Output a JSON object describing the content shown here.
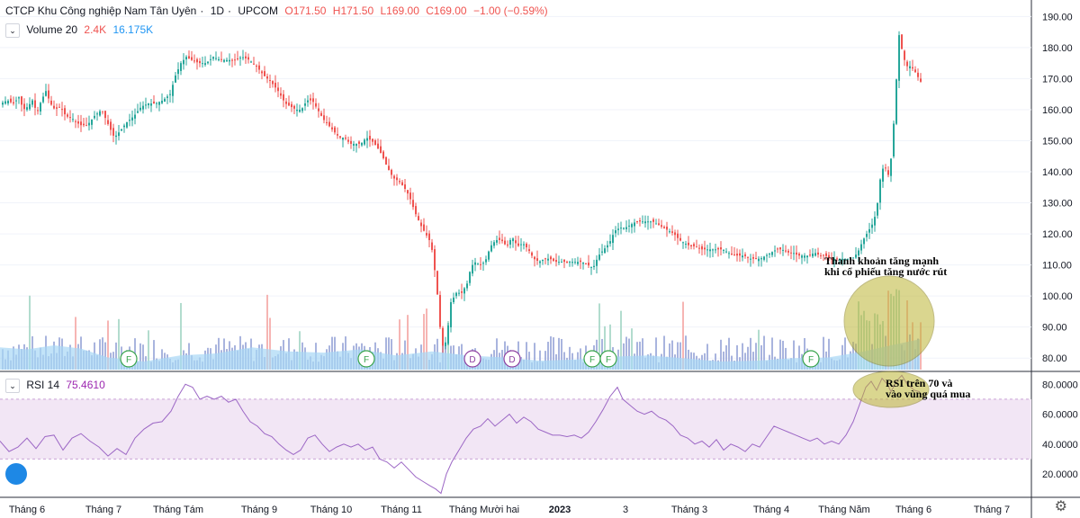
{
  "header": {
    "title": "CTCP Khu Công nghiệp Nam Tân Uyên",
    "interval": "1D",
    "exchange": "UPCOM",
    "open": "O171.50",
    "high": "H171.50",
    "low": "L169.00",
    "close": "C169.00",
    "change": "−1.00 (−0.59%)",
    "sep": "·"
  },
  "volume_legend": {
    "label": "Volume 20",
    "value1": "2.4K",
    "value2": "16.175K",
    "toggle": "⌄"
  },
  "rsi_legend": {
    "label": "RSI 14",
    "value": "75.4610",
    "toggle": "⌄"
  },
  "annotations": [
    {
      "line1": "Thanh khoản tăng mạnh",
      "line2": "khi cổ phiếu tăng nước rút"
    },
    {
      "line1": "RSI trên 70 và",
      "line2": "vào vùng quá mua"
    }
  ],
  "markers": [
    "F",
    "F",
    "D",
    "D",
    "F",
    "F",
    "F"
  ],
  "colors": {
    "up": "#26a69a",
    "down": "#ef5350",
    "vol_up": "#a5d6c6",
    "vol_down": "#f4a8a6",
    "vol_ma": "#a8d7f5",
    "vol_bar": "#9aa7d8",
    "rsi_line": "#9c67c5",
    "rsi_band": "#f2e6f5",
    "annotation_fill": "#bdb534",
    "marker_f": "#37a34a",
    "marker_d": "#8e3fa0"
  },
  "chart_data": {
    "type": "candlestick",
    "price_axis": {
      "ticks": [
        80,
        90,
        100,
        110,
        120,
        130,
        140,
        150,
        160,
        170,
        180,
        190
      ],
      "tick_labels": [
        "80.00",
        "90.00",
        "100.00",
        "110.00",
        "120.00",
        "130.00",
        "140.00",
        "150.00",
        "160.00",
        "170.00",
        "180.00",
        "190.00"
      ],
      "range": [
        76,
        193
      ]
    },
    "rsi_axis": {
      "ticks": [
        20,
        40,
        60,
        80
      ],
      "tick_labels": [
        "20.0000",
        "40.0000",
        "60.0000",
        "80.0000"
      ],
      "range": [
        5,
        88
      ],
      "band": [
        30,
        70
      ]
    },
    "x_labels": [
      "Tháng 6",
      "Tháng 7",
      "Tháng Tám",
      "Tháng 9",
      "Tháng 10",
      "Tháng 11",
      "Tháng Mười hai",
      "2023",
      "3",
      "Tháng 3",
      "Tháng 4",
      "Tháng Năm",
      "Tháng 6",
      "Tháng 7"
    ],
    "close_path": [
      [
        0,
        162
      ],
      [
        7,
        163
      ],
      [
        14,
        162
      ],
      [
        20,
        164
      ],
      [
        25,
        160
      ],
      [
        30,
        161
      ],
      [
        35,
        163
      ],
      [
        40,
        159
      ],
      [
        45,
        163
      ],
      [
        50,
        166
      ],
      [
        55,
        162
      ],
      [
        60,
        160
      ],
      [
        66,
        161
      ],
      [
        72,
        158
      ],
      [
        80,
        157
      ],
      [
        88,
        155
      ],
      [
        96,
        155
      ],
      [
        104,
        158
      ],
      [
        112,
        160
      ],
      [
        118,
        156
      ],
      [
        126,
        151
      ],
      [
        132,
        153
      ],
      [
        140,
        156
      ],
      [
        148,
        158
      ],
      [
        156,
        161
      ],
      [
        164,
        162
      ],
      [
        172,
        162
      ],
      [
        180,
        163
      ],
      [
        188,
        165
      ],
      [
        194,
        171
      ],
      [
        200,
        175
      ],
      [
        206,
        177
      ],
      [
        212,
        176
      ],
      [
        220,
        175
      ],
      [
        228,
        175
      ],
      [
        236,
        177
      ],
      [
        244,
        176
      ],
      [
        252,
        176
      ],
      [
        260,
        176
      ],
      [
        268,
        177
      ],
      [
        276,
        176
      ],
      [
        284,
        174
      ],
      [
        292,
        171
      ],
      [
        300,
        169
      ],
      [
        308,
        166
      ],
      [
        316,
        162
      ],
      [
        322,
        161
      ],
      [
        328,
        160
      ],
      [
        334,
        160
      ],
      [
        340,
        163
      ],
      [
        346,
        163
      ],
      [
        352,
        160
      ],
      [
        358,
        157
      ],
      [
        364,
        155
      ],
      [
        370,
        153
      ],
      [
        376,
        151
      ],
      [
        382,
        151
      ],
      [
        388,
        149
      ],
      [
        394,
        149
      ],
      [
        400,
        149
      ],
      [
        406,
        151
      ],
      [
        412,
        150
      ],
      [
        418,
        148
      ],
      [
        424,
        145
      ],
      [
        430,
        141
      ],
      [
        436,
        138
      ],
      [
        442,
        137
      ],
      [
        448,
        135
      ],
      [
        454,
        132
      ],
      [
        460,
        127
      ],
      [
        466,
        123
      ],
      [
        472,
        120
      ],
      [
        478,
        117
      ],
      [
        484,
        104
      ],
      [
        488,
        90
      ],
      [
        492,
        82
      ],
      [
        496,
        88
      ],
      [
        500,
        98
      ],
      [
        506,
        101
      ],
      [
        512,
        101
      ],
      [
        518,
        104
      ],
      [
        522,
        109
      ],
      [
        526,
        111
      ],
      [
        532,
        110
      ],
      [
        538,
        111
      ],
      [
        544,
        116
      ],
      [
        550,
        118
      ],
      [
        556,
        118
      ],
      [
        562,
        116
      ],
      [
        568,
        119
      ],
      [
        574,
        116
      ],
      [
        580,
        117
      ],
      [
        586,
        115
      ],
      [
        592,
        112
      ],
      [
        598,
        111
      ],
      [
        604,
        112
      ],
      [
        610,
        112
      ],
      [
        616,
        111
      ],
      [
        622,
        111
      ],
      [
        628,
        111
      ],
      [
        634,
        111
      ],
      [
        640,
        111
      ],
      [
        646,
        111
      ],
      [
        652,
        110
      ],
      [
        658,
        109
      ],
      [
        664,
        113
      ],
      [
        670,
        115
      ],
      [
        676,
        117
      ],
      [
        682,
        121
      ],
      [
        688,
        122
      ],
      [
        694,
        122
      ],
      [
        700,
        123
      ],
      [
        706,
        124
      ],
      [
        712,
        124
      ],
      [
        718,
        124
      ],
      [
        724,
        124
      ],
      [
        730,
        123
      ],
      [
        736,
        122
      ],
      [
        742,
        121
      ],
      [
        748,
        120
      ],
      [
        754,
        118
      ],
      [
        760,
        117
      ],
      [
        766,
        116
      ],
      [
        772,
        116
      ],
      [
        778,
        115
      ],
      [
        784,
        115
      ],
      [
        790,
        115
      ],
      [
        796,
        115
      ],
      [
        802,
        115
      ],
      [
        808,
        114
      ],
      [
        814,
        113
      ],
      [
        820,
        113
      ],
      [
        826,
        113
      ],
      [
        832,
        112
      ],
      [
        838,
        112
      ],
      [
        844,
        112
      ],
      [
        850,
        113
      ],
      [
        856,
        114
      ],
      [
        862,
        115
      ],
      [
        868,
        115
      ],
      [
        874,
        114
      ],
      [
        880,
        114
      ],
      [
        886,
        113
      ],
      [
        892,
        113
      ],
      [
        898,
        113
      ],
      [
        904,
        114
      ],
      [
        910,
        113
      ],
      [
        916,
        113
      ],
      [
        922,
        112
      ],
      [
        928,
        112
      ],
      [
        934,
        112
      ],
      [
        940,
        112
      ],
      [
        946,
        112
      ],
      [
        952,
        114
      ],
      [
        958,
        118
      ],
      [
        964,
        121
      ],
      [
        970,
        124
      ],
      [
        974,
        130
      ],
      [
        978,
        140
      ],
      [
        982,
        142
      ],
      [
        986,
        139
      ],
      [
        990,
        146
      ],
      [
        994,
        165
      ],
      [
        998,
        184
      ],
      [
        1002,
        178
      ],
      [
        1006,
        174
      ],
      [
        1010,
        174
      ],
      [
        1014,
        173
      ],
      [
        1018,
        171
      ],
      [
        1022,
        169
      ]
    ],
    "volume_ma_path": [
      [
        0,
        0.55
      ],
      [
        30,
        0.5
      ],
      [
        60,
        0.6
      ],
      [
        90,
        0.52
      ],
      [
        120,
        0.3
      ],
      [
        160,
        0.2
      ],
      [
        200,
        0.35
      ],
      [
        240,
        0.4
      ],
      [
        280,
        0.55
      ],
      [
        320,
        0.45
      ],
      [
        360,
        0.42
      ],
      [
        400,
        0.5
      ],
      [
        440,
        0.35
      ],
      [
        480,
        0.45
      ],
      [
        520,
        0.35
      ],
      [
        560,
        0.3
      ],
      [
        600,
        0.22
      ],
      [
        640,
        0.25
      ],
      [
        680,
        0.32
      ],
      [
        720,
        0.35
      ],
      [
        760,
        0.28
      ],
      [
        800,
        0.2
      ],
      [
        840,
        0.22
      ],
      [
        880,
        0.28
      ],
      [
        920,
        0.3
      ],
      [
        960,
        0.45
      ],
      [
        990,
        0.6
      ],
      [
        1022,
        0.75
      ]
    ],
    "rsi_path": [
      [
        0,
        42
      ],
      [
        10,
        35
      ],
      [
        20,
        38
      ],
      [
        30,
        44
      ],
      [
        40,
        37
      ],
      [
        50,
        45
      ],
      [
        60,
        46
      ],
      [
        70,
        36
      ],
      [
        80,
        44
      ],
      [
        90,
        47
      ],
      [
        100,
        42
      ],
      [
        110,
        38
      ],
      [
        120,
        32
      ],
      [
        130,
        37
      ],
      [
        140,
        33
      ],
      [
        150,
        44
      ],
      [
        160,
        50
      ],
      [
        170,
        54
      ],
      [
        180,
        55
      ],
      [
        190,
        62
      ],
      [
        198,
        72
      ],
      [
        206,
        80
      ],
      [
        214,
        78
      ],
      [
        222,
        70
      ],
      [
        230,
        72
      ],
      [
        238,
        70
      ],
      [
        246,
        72
      ],
      [
        254,
        68
      ],
      [
        262,
        70
      ],
      [
        270,
        62
      ],
      [
        278,
        55
      ],
      [
        286,
        52
      ],
      [
        294,
        47
      ],
      [
        302,
        45
      ],
      [
        310,
        40
      ],
      [
        318,
        36
      ],
      [
        326,
        33
      ],
      [
        334,
        36
      ],
      [
        342,
        44
      ],
      [
        350,
        46
      ],
      [
        358,
        40
      ],
      [
        366,
        35
      ],
      [
        374,
        38
      ],
      [
        382,
        40
      ],
      [
        390,
        38
      ],
      [
        398,
        40
      ],
      [
        406,
        36
      ],
      [
        414,
        38
      ],
      [
        422,
        30
      ],
      [
        430,
        28
      ],
      [
        438,
        24
      ],
      [
        446,
        28
      ],
      [
        454,
        23
      ],
      [
        462,
        18
      ],
      [
        470,
        15
      ],
      [
        478,
        12
      ],
      [
        484,
        10
      ],
      [
        490,
        7
      ],
      [
        496,
        20
      ],
      [
        502,
        28
      ],
      [
        510,
        36
      ],
      [
        518,
        44
      ],
      [
        526,
        50
      ],
      [
        534,
        52
      ],
      [
        542,
        57
      ],
      [
        550,
        52
      ],
      [
        558,
        56
      ],
      [
        566,
        60
      ],
      [
        574,
        54
      ],
      [
        582,
        58
      ],
      [
        590,
        55
      ],
      [
        598,
        50
      ],
      [
        606,
        48
      ],
      [
        614,
        46
      ],
      [
        622,
        46
      ],
      [
        630,
        45
      ],
      [
        638,
        46
      ],
      [
        646,
        44
      ],
      [
        654,
        48
      ],
      [
        662,
        55
      ],
      [
        670,
        63
      ],
      [
        678,
        72
      ],
      [
        686,
        78
      ],
      [
        692,
        70
      ],
      [
        700,
        66
      ],
      [
        708,
        62
      ],
      [
        716,
        60
      ],
      [
        724,
        62
      ],
      [
        732,
        58
      ],
      [
        740,
        56
      ],
      [
        748,
        52
      ],
      [
        756,
        46
      ],
      [
        764,
        44
      ],
      [
        772,
        40
      ],
      [
        780,
        42
      ],
      [
        788,
        38
      ],
      [
        796,
        43
      ],
      [
        804,
        36
      ],
      [
        812,
        40
      ],
      [
        820,
        38
      ],
      [
        828,
        35
      ],
      [
        836,
        40
      ],
      [
        844,
        38
      ],
      [
        852,
        45
      ],
      [
        860,
        52
      ],
      [
        868,
        50
      ],
      [
        876,
        48
      ],
      [
        884,
        46
      ],
      [
        892,
        44
      ],
      [
        900,
        42
      ],
      [
        908,
        44
      ],
      [
        916,
        40
      ],
      [
        924,
        42
      ],
      [
        932,
        40
      ],
      [
        940,
        46
      ],
      [
        948,
        55
      ],
      [
        956,
        68
      ],
      [
        962,
        78
      ],
      [
        968,
        82
      ],
      [
        974,
        76
      ],
      [
        980,
        84
      ],
      [
        986,
        80
      ],
      [
        990,
        75
      ],
      [
        996,
        82
      ],
      [
        1002,
        86
      ],
      [
        1008,
        80
      ],
      [
        1016,
        76
      ],
      [
        1022,
        75
      ]
    ]
  }
}
